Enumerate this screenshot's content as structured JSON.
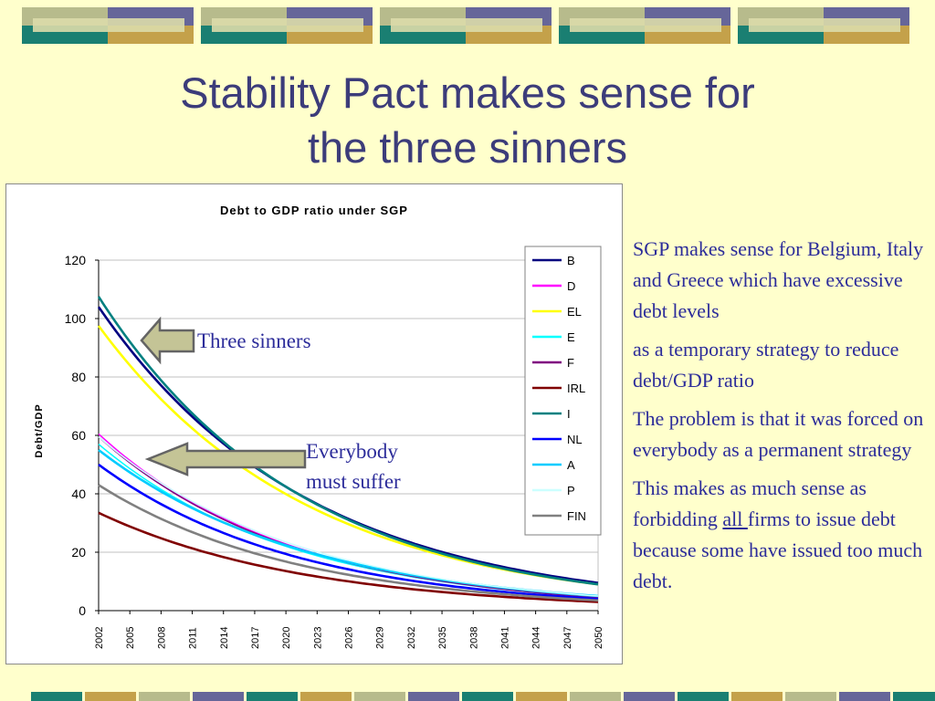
{
  "colors": {
    "background": "#ffffcc",
    "title_text": "#3c3c7a",
    "body_text": "#2c2c9a",
    "arrow_fill": "#c4c496",
    "arrow_stroke": "#646464",
    "deco_teal": "#1a7f72",
    "deco_blue": "#666699",
    "deco_sage": "#b7bb8c",
    "deco_gold": "#c4a14a"
  },
  "slide": {
    "title_line1": "Stability Pact makes sense for",
    "title_line2": "the three sinners"
  },
  "side_text": {
    "p1": "SGP makes sense for Belgium, Italy and Greece which have excessive debt levels",
    "p2": "as a temporary strategy to reduce debt/GDP ratio",
    "p3": "The problem is that it was forced on everybody as a permanent strategy",
    "p4_before": "This makes as much sense as forbidding ",
    "p4_underlined": "all ",
    "p4_after": "firms to issue debt because some have issued too much debt."
  },
  "annotations": {
    "three_sinners": "Three sinners",
    "everybody_line1": "Everybody",
    "everybody_line2": "must suffer"
  },
  "chart_data": {
    "type": "line",
    "title": "Debt to GDP ratio under SGP",
    "xlabel": "",
    "ylabel": "Debt/GDP",
    "ylim": [
      0,
      120
    ],
    "yticks": [
      0,
      20,
      40,
      60,
      80,
      100,
      120
    ],
    "xlim": [
      2002,
      2050
    ],
    "xticks": [
      2002,
      2005,
      2008,
      2011,
      2014,
      2017,
      2020,
      2023,
      2026,
      2029,
      2032,
      2035,
      2038,
      2041,
      2044,
      2047,
      2050
    ],
    "grid": true,
    "legend_position": "right",
    "series": [
      {
        "name": "B",
        "color": "#000080",
        "start": 104,
        "end": 9.5
      },
      {
        "name": "D",
        "color": "#ff00ff",
        "start": 60.5,
        "end": 4.5
      },
      {
        "name": "EL",
        "color": "#ffff00",
        "start": 97.5,
        "end": 9.0
      },
      {
        "name": "E",
        "color": "#00ffff",
        "start": 57.0,
        "end": 4.5
      },
      {
        "name": "F",
        "color": "#800080",
        "start": 59.5,
        "end": 4.5
      },
      {
        "name": "IRL",
        "color": "#800000",
        "start": 33.5,
        "end": 3.0
      },
      {
        "name": "I",
        "color": "#008080",
        "start": 107.5,
        "end": 9.0
      },
      {
        "name": "NL",
        "color": "#0000ff",
        "start": 50.0,
        "end": 4.0
      },
      {
        "name": "A",
        "color": "#00ccff",
        "start": 55.0,
        "end": 5.0
      },
      {
        "name": "P",
        "color": "#ccffff",
        "start": 59.5,
        "end": 5.0
      },
      {
        "name": "FIN",
        "color": "#808080",
        "start": 43.0,
        "end": 3.5
      }
    ]
  }
}
